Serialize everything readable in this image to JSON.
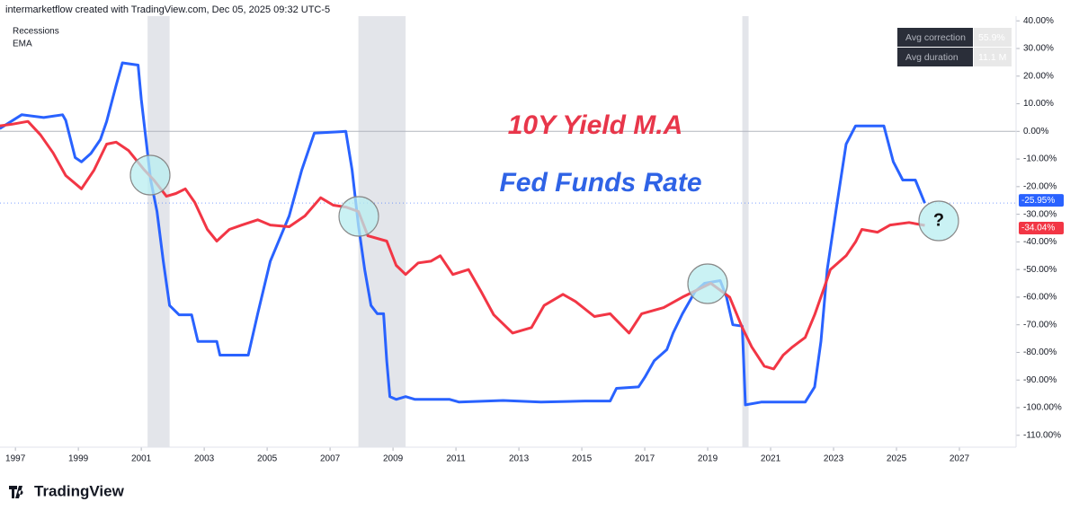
{
  "header": "intermarketflow created with TradingView.com, Dec 05, 2025 09:32 UTC-5",
  "footer": "TradingView",
  "chart_data": {
    "type": "line",
    "legend": [
      "Recessions",
      "EMA"
    ],
    "annotations": [
      "10Y Yield M.A",
      "Fed Funds Rate",
      "?"
    ],
    "stats": [
      {
        "label": "Avg correction",
        "value": "55.9%"
      },
      {
        "label": "Avg duration",
        "value": "11.1 M"
      }
    ],
    "recessions": [
      [
        2001.2,
        2001.9
      ],
      [
        2007.9,
        2009.4
      ],
      [
        2020.1,
        2020.3
      ]
    ],
    "xlim": [
      1996.51,
      2028.8
    ],
    "xticks": [
      1997,
      1999,
      2001,
      2003,
      2005,
      2007,
      2009,
      2011,
      2013,
      2015,
      2017,
      2019,
      2021,
      2023,
      2025,
      2027
    ],
    "ylim": [
      -114.3,
      41.7
    ],
    "yticks": [
      {
        "value": 40,
        "label": "40.00%"
      },
      {
        "value": 30,
        "label": "30.00%"
      },
      {
        "value": 20,
        "label": "20.00%"
      },
      {
        "value": 10,
        "label": "10.00%"
      },
      {
        "value": 0,
        "label": "0.00%"
      },
      {
        "value": -10,
        "label": "-10.00%"
      },
      {
        "value": -20,
        "label": "-20.00%"
      },
      {
        "value": -30,
        "label": "-30.00%"
      },
      {
        "value": -40,
        "label": "-40.00%"
      },
      {
        "value": -50,
        "label": "-50.00%"
      },
      {
        "value": -60,
        "label": "-60.00%"
      },
      {
        "value": -70,
        "label": "-70.00%"
      },
      {
        "value": -80,
        "label": "-80.00%"
      },
      {
        "value": -90,
        "label": "-90.00%"
      },
      {
        "value": -100,
        "label": "-100.00%"
      },
      {
        "value": -110,
        "label": "-110.00%"
      }
    ],
    "series": [
      {
        "name": "Fed Funds Rate",
        "color": "#2962ff",
        "last_label": "-25.95%",
        "x": [
          1996.5,
          1997.2,
          1997.9,
          1998.5,
          1998.6,
          1998.9,
          1999.1,
          1999.4,
          1999.7,
          1999.9,
          2000.2,
          2000.4,
          2000.9,
          2001.0,
          2001.3,
          2001.5,
          2001.7,
          2001.9,
          2002.2,
          2002.6,
          2002.8,
          2003.4,
          2003.5,
          2004.4,
          2004.7,
          2005.1,
          2005.7,
          2006.1,
          2006.5,
          2007.5,
          2007.7,
          2007.9,
          2008.1,
          2008.3,
          2008.5,
          2008.7,
          2008.8,
          2008.9,
          2009.1,
          2009.4,
          2009.7,
          2010.8,
          2011.1,
          2012.5,
          2013.7,
          2015.1,
          2015.9,
          2016.1,
          2016.8,
          2017.0,
          2017.3,
          2017.7,
          2017.9,
          2018.2,
          2018.6,
          2018.9,
          2019.4,
          2019.6,
          2019.8,
          2020.1,
          2020.2,
          2020.7,
          2021.7,
          2022.1,
          2022.4,
          2022.6,
          2022.8,
          2023.1,
          2023.4,
          2023.7,
          2024.6,
          2024.9,
          2025.2,
          2025.6,
          2025.9
        ],
        "values": [
          1,
          6,
          5,
          6,
          4,
          -9.5,
          -11,
          -8,
          -3,
          3.6,
          16.6,
          24.8,
          24,
          11.7,
          -17.6,
          -29,
          -47,
          -63,
          -66.4,
          -66.4,
          -76,
          -76,
          -81,
          -81,
          -66,
          -47,
          -30.6,
          -14,
          -0.6,
          0,
          -14,
          -34,
          -50,
          -63,
          -66,
          -66,
          -83,
          -96,
          -97,
          -96,
          -97,
          -97,
          -98,
          -97.4,
          -98,
          -97.6,
          -97.6,
          -93,
          -92.5,
          -89,
          -83,
          -79,
          -73,
          -66,
          -58,
          -55,
          -54,
          -60,
          -70,
          -70.5,
          -99,
          -98,
          -98,
          -98,
          -92.5,
          -76,
          -50,
          -27,
          -4.6,
          2,
          2,
          -11,
          -17.6,
          -17.6,
          -25.95
        ]
      },
      {
        "name": "10Y Yield M.A",
        "color": "#f23645",
        "last_label": "-34.04%",
        "x": [
          1996.5,
          1996.9,
          1997.4,
          1997.8,
          1998.2,
          1998.6,
          1999.1,
          1999.5,
          1999.9,
          2000.2,
          2000.6,
          2001.1,
          2001.4,
          2001.8,
          2002.1,
          2002.4,
          2002.7,
          2003.1,
          2003.4,
          2003.8,
          2004.2,
          2004.7,
          2005.1,
          2005.7,
          2006.2,
          2006.7,
          2007.1,
          2007.5,
          2007.9,
          2008.2,
          2008.8,
          2009.1,
          2009.4,
          2009.8,
          2010.2,
          2010.5,
          2010.9,
          2011.4,
          2011.8,
          2012.2,
          2012.8,
          2013.4,
          2013.8,
          2014.4,
          2014.8,
          2015.4,
          2015.9,
          2016.5,
          2016.9,
          2017.6,
          2018.2,
          2019.1,
          2019.7,
          2020.1,
          2020.4,
          2020.8,
          2021.1,
          2021.4,
          2021.7,
          2022.1,
          2022.4,
          2022.7,
          2022.9,
          2023.4,
          2023.7,
          2023.9,
          2024.4,
          2024.8,
          2025.4,
          2025.9
        ],
        "values": [
          2,
          2.6,
          3.6,
          -1.3,
          -7.8,
          -16,
          -20.8,
          -14,
          -4.6,
          -3.9,
          -7,
          -14,
          -17.6,
          -23.5,
          -22.5,
          -20.8,
          -25.7,
          -35.5,
          -39.7,
          -35.5,
          -33.9,
          -32,
          -33.9,
          -34.5,
          -30.6,
          -24,
          -26.7,
          -27.4,
          -29,
          -37.8,
          -39.7,
          -48.5,
          -51.8,
          -47.6,
          -47,
          -45,
          -51.8,
          -50,
          -58,
          -66.4,
          -73,
          -71,
          -63,
          -59,
          -61.6,
          -67,
          -66,
          -73,
          -66,
          -63.8,
          -60,
          -55,
          -60,
          -71,
          -78,
          -85,
          -86,
          -81,
          -78,
          -74.6,
          -66.4,
          -56.7,
          -50,
          -45,
          -40,
          -35.5,
          -36.5,
          -33.9,
          -33,
          -34.04
        ]
      }
    ]
  }
}
